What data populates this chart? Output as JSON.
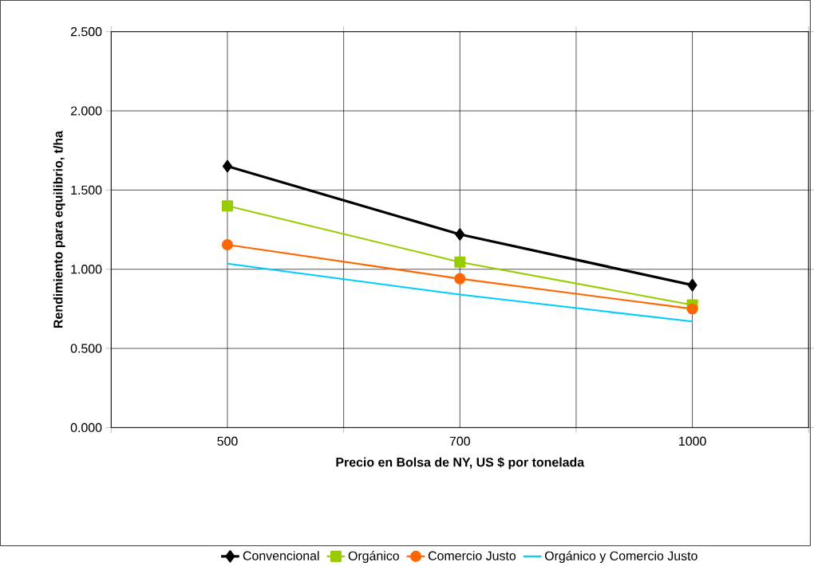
{
  "chart_data": {
    "type": "line",
    "xlabel": "Precio en Bolsa de NY, US $ por tonelada",
    "ylabel": "Rendimiento para equilibrio, t/ha",
    "categories": [
      "500",
      "700",
      "1000"
    ],
    "series": [
      {
        "name": "Convencional",
        "color": "#000000",
        "marker": "diamond",
        "values": [
          1.65,
          1.22,
          0.9
        ]
      },
      {
        "name": "Orgánico",
        "color": "#99cc00",
        "marker": "square",
        "values": [
          1.4,
          1.045,
          0.775
        ]
      },
      {
        "name": "Comercio Justo",
        "color": "#ff6600",
        "marker": "circle",
        "values": [
          1.155,
          0.94,
          0.75
        ]
      },
      {
        "name": "Orgánico y Comercio Justo",
        "color": "#00ccff",
        "marker": "none",
        "values": [
          1.035,
          0.84,
          0.67
        ]
      }
    ],
    "ylim": [
      0,
      2.5
    ],
    "yticks": [
      {
        "value": 0,
        "label": "0.000"
      },
      {
        "value": 0.5,
        "label": "0.500"
      },
      {
        "value": 1,
        "label": "1.000"
      },
      {
        "value": 1.5,
        "label": "1.500"
      },
      {
        "value": 2,
        "label": "2.000"
      },
      {
        "value": 2.5,
        "label": "2.500"
      }
    ],
    "grid": true,
    "legend": "bottom",
    "line_style": "solid"
  }
}
